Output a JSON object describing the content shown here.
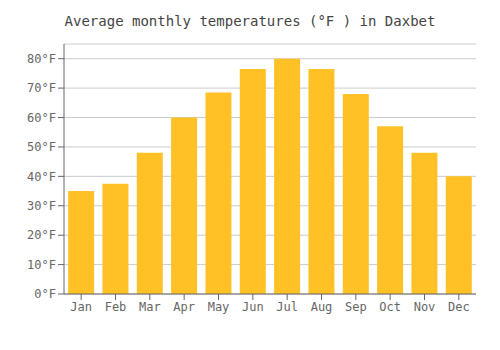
{
  "chart_data": {
    "type": "bar",
    "title": "Average monthly temperatures (°F ) in Daxbet",
    "categories": [
      "Jan",
      "Feb",
      "Mar",
      "Apr",
      "May",
      "Jun",
      "Jul",
      "Aug",
      "Sep",
      "Oct",
      "Nov",
      "Dec"
    ],
    "values": [
      35,
      37.5,
      48,
      60,
      68.5,
      76.5,
      80,
      76.5,
      68,
      57,
      48,
      40
    ],
    "color": "#FFC125",
    "ylim": [
      0,
      85
    ],
    "yticks": [
      {
        "value": 0,
        "label": "0°F"
      },
      {
        "value": 10,
        "label": "10°F"
      },
      {
        "value": 20,
        "label": "20°F"
      },
      {
        "value": 30,
        "label": "30°F"
      },
      {
        "value": 40,
        "label": "40°F"
      },
      {
        "value": 50,
        "label": "50°F"
      },
      {
        "value": 60,
        "label": "60°F"
      },
      {
        "value": 70,
        "label": "70°F"
      },
      {
        "value": 80,
        "label": "80°F"
      }
    ],
    "grid": true
  }
}
